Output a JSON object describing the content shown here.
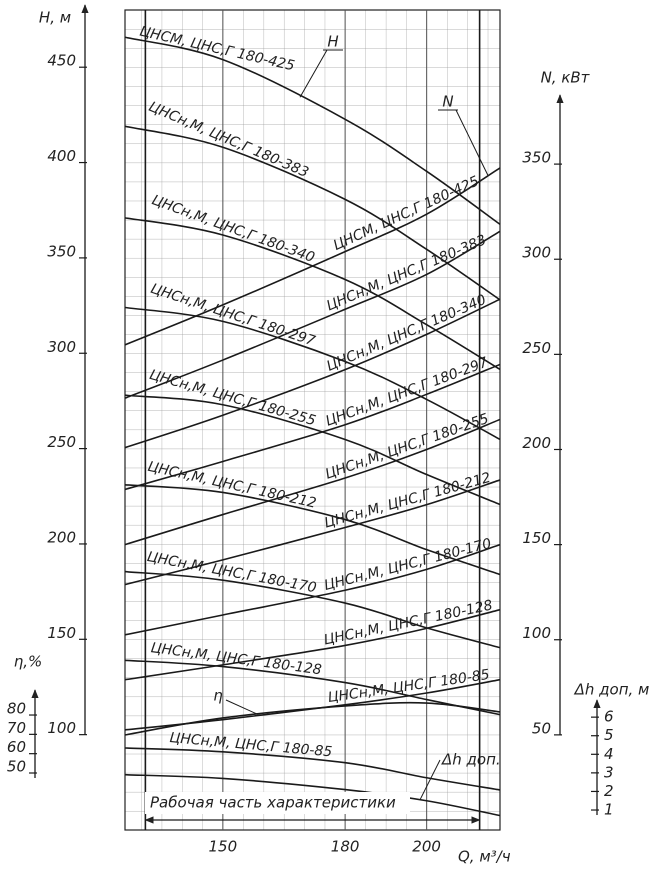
{
  "chart_data": {
    "type": "line",
    "color": "#1a1a1a",
    "grid": true,
    "x_label": "Q, м³/ч",
    "xlim": [
      126,
      218
    ],
    "xticks": [
      150,
      180,
      200
    ],
    "y_label": "H, м",
    "ylim": [
      50,
      480
    ],
    "yticks": [
      100,
      150,
      200,
      250,
      300,
      350,
      400,
      450
    ],
    "y2_label": "N, кВт",
    "y2lim": [
      0,
      431
    ],
    "y2ticks": [
      50,
      100,
      150,
      200,
      250,
      300,
      350
    ],
    "eta_axis": {
      "label": "η,%",
      "lim": [
        47,
        90
      ],
      "ticks": [
        50,
        60,
        70,
        80
      ]
    },
    "dh_axis": {
      "label": "Δh доп, м",
      "lim": [
        0,
        6.6
      ],
      "ticks": [
        1,
        2,
        3,
        4,
        5,
        6
      ]
    },
    "annotations": [
      "H",
      "N"
    ],
    "working_range": {
      "label": "Рабочая часть характеристики",
      "values": [
        131,
        213
      ]
    },
    "x": [
      126,
      150,
      180,
      200,
      218
    ],
    "series": [
      {
        "name": "ЦНСМ, ЦНС,Г 180-425",
        "axis": "y",
        "values": [
          465.7,
          454,
          422.7,
          395.4,
          367.6
        ]
      },
      {
        "name": "ЦНСн,М, ЦНС,Г 180-383",
        "axis": "y",
        "values": [
          419,
          408,
          380.7,
          354.5,
          328
        ]
      },
      {
        "name": "ЦНСн,М, ЦНС,Г 180-340",
        "axis": "y",
        "values": [
          371,
          362,
          338.7,
          315,
          291.5
        ]
      },
      {
        "name": "ЦНСн,М, ЦНС,Г 180-297",
        "axis": "y",
        "values": [
          324,
          316.7,
          295.7,
          275.8,
          254.8
        ]
      },
      {
        "name": "ЦНСн,М, ЦНС,Г 180-255",
        "axis": "y",
        "values": [
          278,
          273,
          254.8,
          236.4,
          220.7
        ]
      },
      {
        "name": "ЦНСн,М, ЦНС,Г 180-212",
        "axis": "y",
        "values": [
          231,
          227,
          212.8,
          197,
          184
        ]
      },
      {
        "name": "ЦНСн,М, ЦНС,Г 180-170",
        "axis": "y",
        "values": [
          185.5,
          181,
          169,
          156,
          145.6
        ]
      },
      {
        "name": "ЦНСн,М, ЦНС,Г 180-128",
        "axis": "y",
        "values": [
          139,
          135.7,
          127.3,
          118.4,
          110.5
        ]
      },
      {
        "name": "ЦНСн,М, ЦНС,Г 180-85",
        "axis": "y",
        "values": [
          93,
          91,
          85.3,
          77.4,
          71
        ]
      },
      {
        "name": "ЦНСМ, ЦНС,Г 180-425",
        "axis": "y2",
        "values": [
          255,
          276,
          304,
          323.7,
          348
        ]
      },
      {
        "name": "ЦНСн,М, ЦНС,Г 180-383",
        "axis": "y2",
        "values": [
          227,
          247,
          273.7,
          292,
          314.7
        ]
      },
      {
        "name": "ЦНСн,М, ЦНС,Г 180-340",
        "axis": "y2",
        "values": [
          201,
          218,
          242,
          260.5,
          279
        ]
      },
      {
        "name": "ЦНСн,М, ЦНС,Г 180-297",
        "axis": "y2",
        "values": [
          179,
          193.7,
          213,
          229,
          244.7
        ]
      },
      {
        "name": "ЦНСн,М, ЦНС,Г 180-255",
        "axis": "y2",
        "values": [
          150,
          165.8,
          185,
          200,
          215.8
        ]
      },
      {
        "name": "ЦНСн,М, ЦНС,Г 180-212",
        "axis": "y2",
        "values": [
          129,
          142,
          159,
          171,
          184
        ]
      },
      {
        "name": "ЦНСн,М, ЦНС,Г 180-170",
        "axis": "y2",
        "values": [
          102.6,
          113,
          126,
          137,
          150
        ]
      },
      {
        "name": "ЦНСн,М, ЦНС,Г 180-128",
        "axis": "y2",
        "values": [
          79,
          86.8,
          97,
          106,
          115.8
        ]
      },
      {
        "name": "ЦНСн,М, ЦНС,Г 180-85",
        "axis": "y2",
        "values": [
          52.6,
          58,
          65.8,
          72,
          79
        ]
      },
      {
        "name": "η",
        "axis": "eta",
        "values": [
          69.7,
          78.5,
          84.7,
          86.2,
          81.6
        ]
      },
      {
        "name": "Δh доп.",
        "axis": "dh",
        "values": [
          2.9,
          2.7,
          2.1,
          1.5,
          0.7
        ]
      }
    ]
  }
}
